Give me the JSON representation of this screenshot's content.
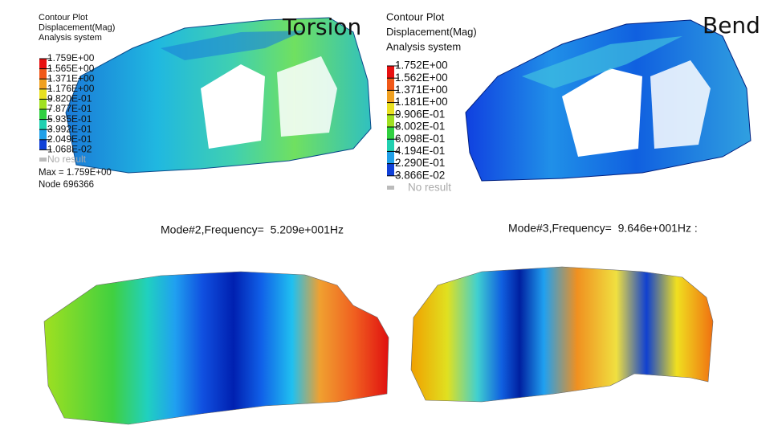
{
  "panels": [
    {
      "title": "Torsion",
      "header": [
        "Contour Plot",
        "Displacement(Mag)",
        "Analysis system"
      ],
      "legend": [
        "1.759E+00",
        "1.565E+00",
        "1.371E+00",
        "1.176E+00",
        "9.820E-01",
        "7.877E-01",
        "5.935E-01",
        "3.992E-01",
        "2.049E-01",
        "1.068E-02"
      ],
      "no_result": "No result",
      "footer": [
        "Max = 1.759E+00",
        "Node 696366"
      ]
    },
    {
      "title": "Bend",
      "header": [
        "Contour Plot",
        "Displacement(Mag)",
        "Analysis system"
      ],
      "legend": [
        "1.752E+00",
        "1.562E+00",
        "1.371E+00",
        "1.181E+00",
        "9.906E-01",
        "8.002E-01",
        "6.098E-01",
        "4.194E-01",
        "2.290E-01",
        "3.866E-02"
      ],
      "no_result": "No result"
    }
  ],
  "modes": [
    "Mode#2,Frequency=  5.209e+001Hz",
    "Mode#3,Frequency=  9.646e+001Hz :"
  ]
}
